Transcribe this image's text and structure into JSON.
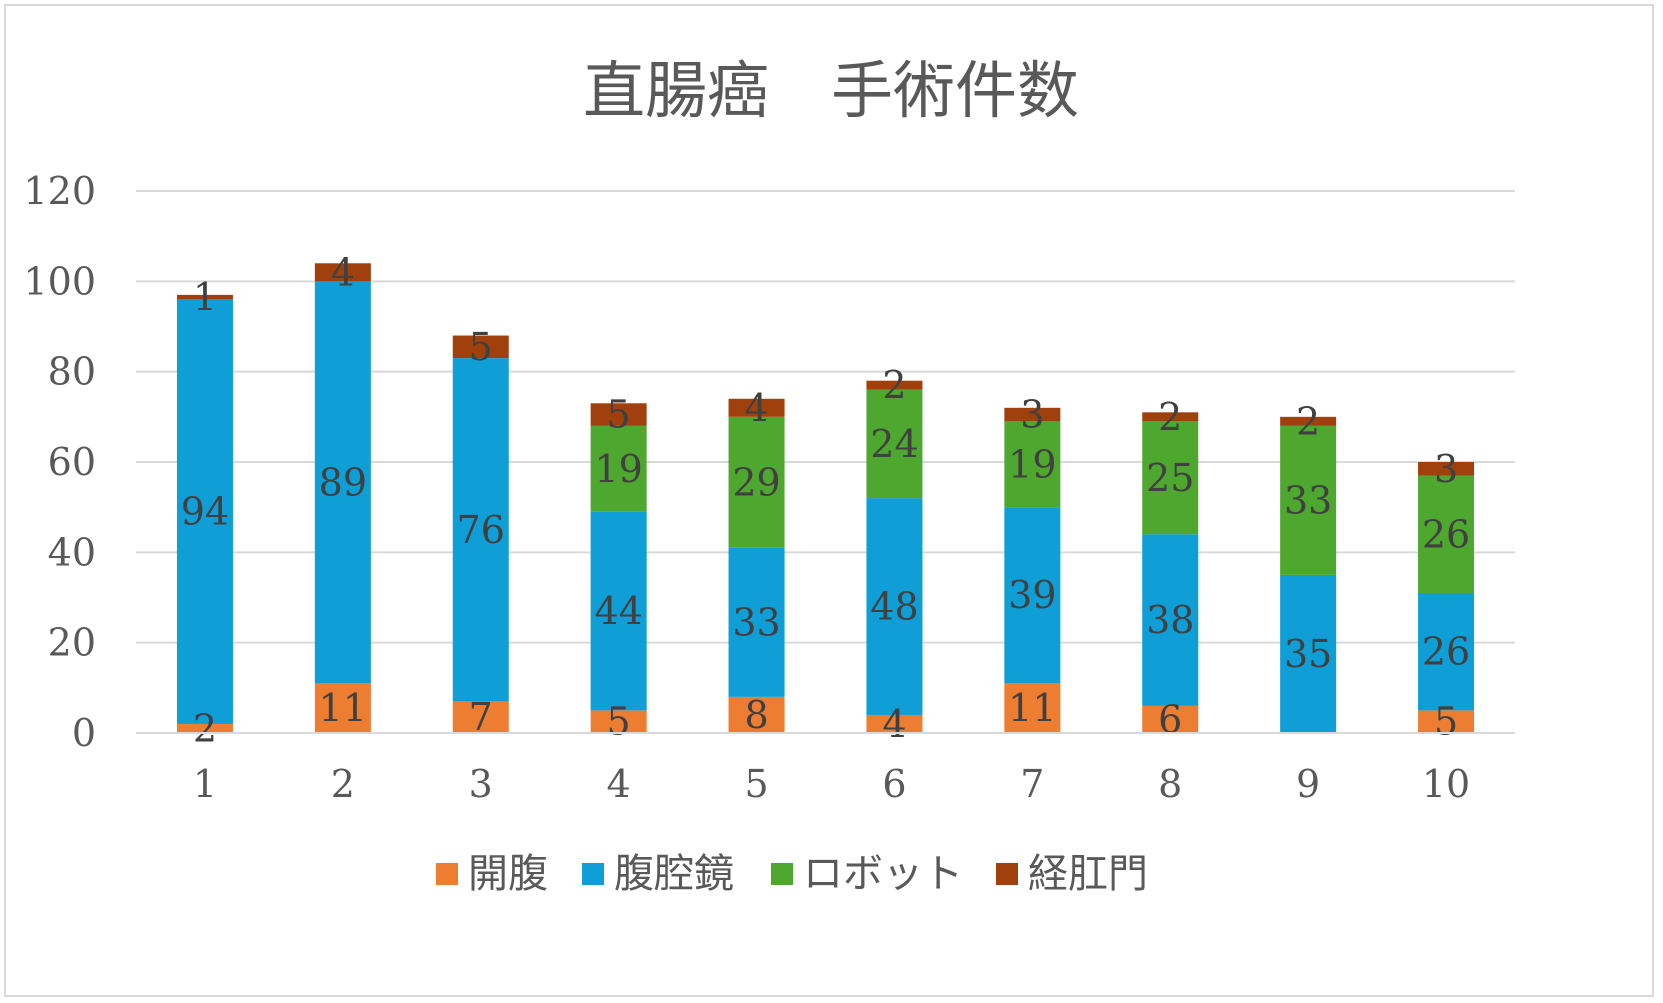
{
  "chart_data": {
    "type": "bar",
    "stacked": true,
    "title": "直腸癌　手術件数",
    "categories": [
      "1",
      "2",
      "3",
      "4",
      "5",
      "6",
      "7",
      "8",
      "9",
      "10"
    ],
    "series": [
      {
        "name": "開腹",
        "color": "#ED7D31",
        "values": [
          2,
          11,
          7,
          5,
          8,
          4,
          11,
          6,
          0,
          5
        ],
        "labels": [
          "2",
          "11",
          "7",
          "5",
          "8",
          "4",
          "11",
          "6",
          "",
          "5"
        ]
      },
      {
        "name": "腹腔鏡",
        "color": "#0F9ED5",
        "values": [
          94,
          89,
          76,
          44,
          33,
          48,
          39,
          38,
          35,
          26
        ],
        "labels": [
          "94",
          "89",
          "76",
          "44",
          "33",
          "48",
          "39",
          "38",
          "35",
          "26"
        ]
      },
      {
        "name": "ロボット",
        "color": "#4EA72E",
        "values": [
          0,
          0,
          0,
          19,
          29,
          24,
          19,
          25,
          33,
          26
        ],
        "labels": [
          "",
          "",
          "",
          "19",
          "29",
          "24",
          "19",
          "25",
          "33",
          "26"
        ]
      },
      {
        "name": "経肛門",
        "color": "#A0410D",
        "values": [
          1,
          4,
          5,
          5,
          4,
          2,
          3,
          2,
          2,
          3
        ],
        "labels": [
          "1",
          "4",
          "5",
          "5",
          "4",
          "2",
          "3",
          "2",
          "2",
          "3"
        ]
      }
    ],
    "ylim": [
      0,
      120
    ],
    "yticks": [
      "0",
      "20",
      "40",
      "60",
      "80",
      "100",
      "120"
    ],
    "grid": true,
    "legend_position": "bottom"
  }
}
